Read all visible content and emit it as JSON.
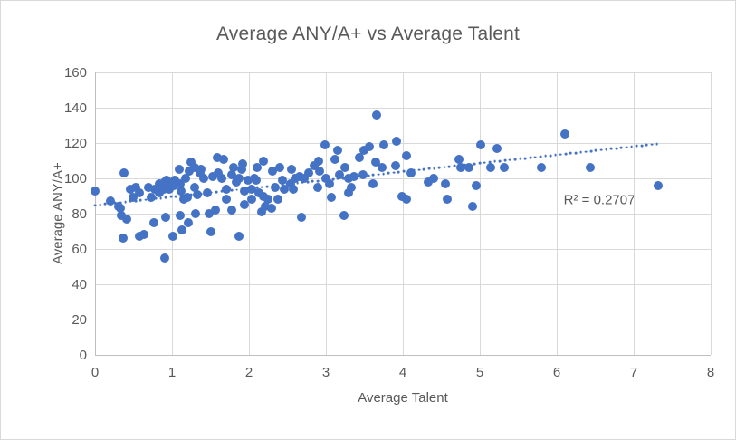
{
  "window": {
    "background": "#ffffff",
    "frame_border_color": "#d9d9d9"
  },
  "chart_data": {
    "type": "scatter",
    "title": "Average ANY/A+ vs Average Talent",
    "xlabel": "Average Talent",
    "ylabel": "Average ANY/A+",
    "xlim": [
      0,
      8
    ],
    "ylim": [
      0,
      160
    ],
    "x_ticks": [
      0,
      1,
      2,
      3,
      4,
      5,
      6,
      7,
      8
    ],
    "y_ticks": [
      0,
      20,
      40,
      60,
      80,
      100,
      120,
      140,
      160
    ],
    "grid": true,
    "legend": "none",
    "marker_color": "#4472c4",
    "gridline_color": "#d9d9d9",
    "axis_line_color": "#bfbfbf",
    "text_color": "#595959",
    "points": [
      [
        0,
        93
      ],
      [
        0.2,
        87
      ],
      [
        0.3,
        84
      ],
      [
        0.33,
        83
      ],
      [
        0.34,
        79
      ],
      [
        0.36,
        66
      ],
      [
        0.38,
        103
      ],
      [
        0.41,
        77
      ],
      [
        0.46,
        94
      ],
      [
        0.49,
        89
      ],
      [
        0.53,
        95
      ],
      [
        0.58,
        92
      ],
      [
        0.58,
        67
      ],
      [
        0.64,
        68
      ],
      [
        0.69,
        95
      ],
      [
        0.73,
        89
      ],
      [
        0.76,
        75
      ],
      [
        0.78,
        94
      ],
      [
        0.84,
        97
      ],
      [
        0.84,
        92
      ],
      [
        0.89,
        94
      ],
      [
        0.9,
        98
      ],
      [
        0.91,
        55
      ],
      [
        0.92,
        78
      ],
      [
        0.93,
        99
      ],
      [
        0.96,
        94
      ],
      [
        0.98,
        96
      ],
      [
        1.01,
        67
      ],
      [
        1.02,
        96
      ],
      [
        1.03,
        99
      ],
      [
        1.09,
        105
      ],
      [
        1.1,
        97
      ],
      [
        1.11,
        79
      ],
      [
        1.12,
        93
      ],
      [
        1.13,
        71
      ],
      [
        1.15,
        88
      ],
      [
        1.18,
        100
      ],
      [
        1.2,
        89
      ],
      [
        1.21,
        75
      ],
      [
        1.22,
        104
      ],
      [
        1.25,
        109
      ],
      [
        1.29,
        106
      ],
      [
        1.29,
        95
      ],
      [
        1.31,
        80
      ],
      [
        1.33,
        91
      ],
      [
        1.37,
        103
      ],
      [
        1.38,
        105
      ],
      [
        1.41,
        100
      ],
      [
        1.46,
        92
      ],
      [
        1.48,
        80
      ],
      [
        1.5,
        70
      ],
      [
        1.53,
        101
      ],
      [
        1.57,
        82
      ],
      [
        1.59,
        112
      ],
      [
        1.6,
        103
      ],
      [
        1.65,
        100
      ],
      [
        1.67,
        111
      ],
      [
        1.7,
        94
      ],
      [
        1.7,
        88
      ],
      [
        1.78,
        102
      ],
      [
        1.78,
        82
      ],
      [
        1.8,
        106
      ],
      [
        1.84,
        98
      ],
      [
        1.87,
        100
      ],
      [
        1.87,
        67
      ],
      [
        1.9,
        105
      ],
      [
        1.92,
        108
      ],
      [
        1.94,
        93
      ],
      [
        1.94,
        85
      ],
      [
        1.99,
        99
      ],
      [
        2.03,
        88
      ],
      [
        2.04,
        94
      ],
      [
        2.07,
        100
      ],
      [
        2.09,
        99
      ],
      [
        2.11,
        106
      ],
      [
        2.13,
        92
      ],
      [
        2.17,
        81
      ],
      [
        2.19,
        110
      ],
      [
        2.19,
        90
      ],
      [
        2.21,
        84
      ],
      [
        2.25,
        88
      ],
      [
        2.29,
        83
      ],
      [
        2.31,
        104
      ],
      [
        2.34,
        95
      ],
      [
        2.38,
        88
      ],
      [
        2.4,
        106
      ],
      [
        2.44,
        99
      ],
      [
        2.46,
        94
      ],
      [
        2.54,
        97
      ],
      [
        2.55,
        105
      ],
      [
        2.58,
        94
      ],
      [
        2.6,
        100
      ],
      [
        2.66,
        101
      ],
      [
        2.68,
        78
      ],
      [
        2.72,
        100
      ],
      [
        2.78,
        103
      ],
      [
        2.85,
        107
      ],
      [
        2.89,
        95
      ],
      [
        2.91,
        110
      ],
      [
        2.92,
        104
      ],
      [
        2.99,
        119
      ],
      [
        3,
        100
      ],
      [
        3.05,
        97
      ],
      [
        3.07,
        89
      ],
      [
        3.12,
        111
      ],
      [
        3.15,
        116
      ],
      [
        3.18,
        102
      ],
      [
        3.24,
        79
      ],
      [
        3.25,
        106
      ],
      [
        3.29,
        100
      ],
      [
        3.29,
        92
      ],
      [
        3.33,
        95
      ],
      [
        3.36,
        101
      ],
      [
        3.44,
        112
      ],
      [
        3.48,
        102
      ],
      [
        3.49,
        116
      ],
      [
        3.57,
        118
      ],
      [
        3.61,
        97
      ],
      [
        3.65,
        109
      ],
      [
        3.66,
        136
      ],
      [
        3.73,
        106
      ],
      [
        3.75,
        119
      ],
      [
        3.91,
        107
      ],
      [
        3.92,
        121
      ],
      [
        3.99,
        90
      ],
      [
        4.05,
        88
      ],
      [
        4.05,
        113
      ],
      [
        4.1,
        103
      ],
      [
        4.33,
        98
      ],
      [
        4.4,
        100
      ],
      [
        4.55,
        97
      ],
      [
        4.58,
        88
      ],
      [
        4.73,
        111
      ],
      [
        4.75,
        106
      ],
      [
        4.86,
        106
      ],
      [
        4.91,
        84
      ],
      [
        4.95,
        96
      ],
      [
        5.01,
        119
      ],
      [
        5.14,
        106
      ],
      [
        5.22,
        117
      ],
      [
        5.32,
        106
      ],
      [
        5.8,
        106
      ],
      [
        6.11,
        125
      ],
      [
        6.43,
        106
      ],
      [
        7.32,
        96
      ]
    ],
    "trendline": {
      "style": "dotted",
      "color": "#4472c4",
      "x_start": 0,
      "y_start": 84.8,
      "x_end": 7.3,
      "y_end": 119.5
    },
    "annotation": {
      "text": "R² = 0.2707",
      "x": 6.09,
      "y": 87.5
    }
  }
}
